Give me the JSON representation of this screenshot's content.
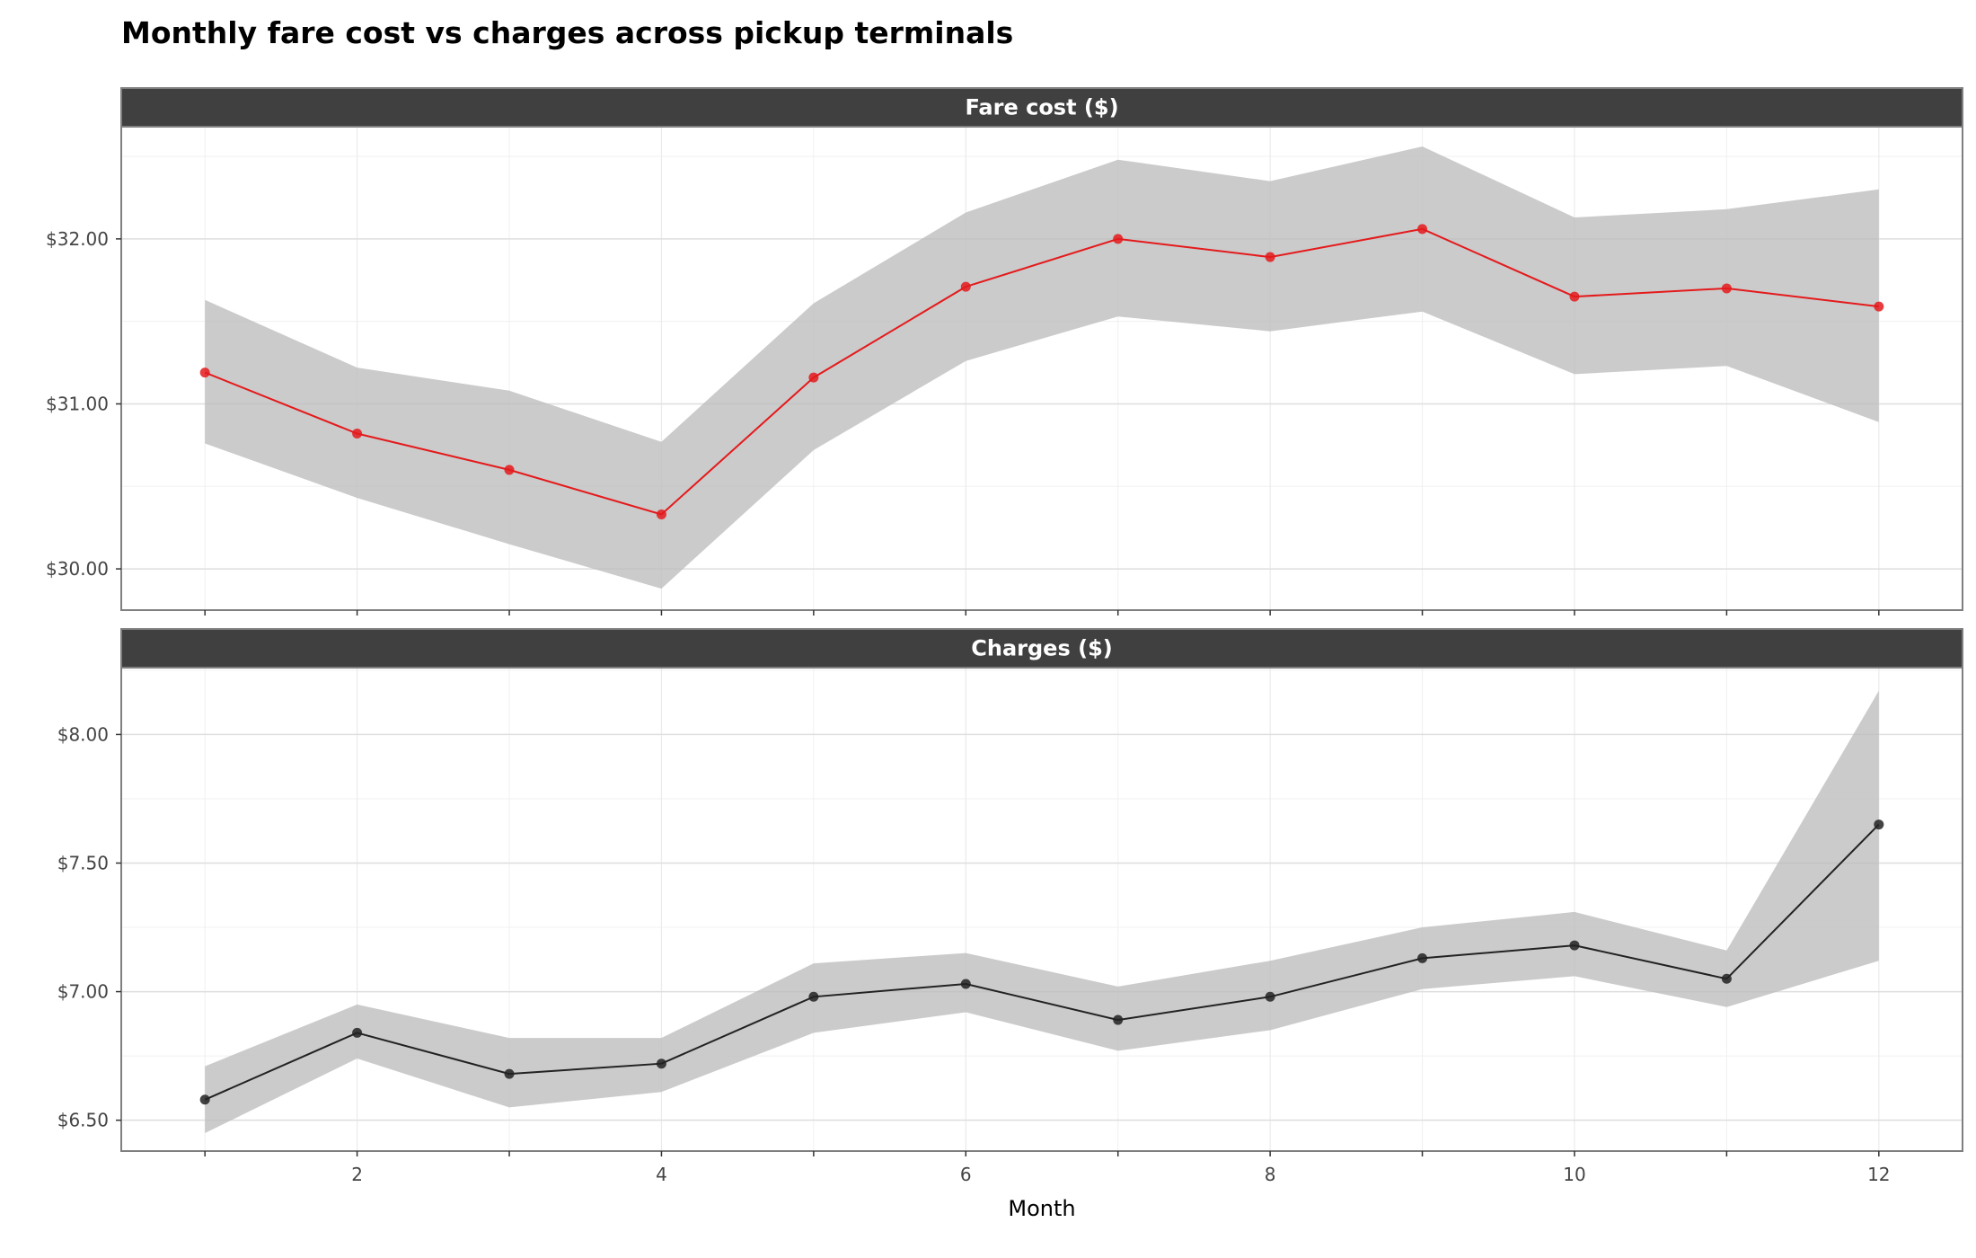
{
  "chart_data": {
    "type": "line",
    "title": "Monthly fare cost vs charges across pickup terminals",
    "xlabel": "Month",
    "x": [
      1,
      2,
      3,
      4,
      5,
      6,
      7,
      8,
      9,
      10,
      11,
      12
    ],
    "xticks": [
      2,
      4,
      6,
      8,
      10,
      12
    ],
    "xlim": [
      0.45,
      12.55
    ],
    "grid": true,
    "facets": [
      {
        "name": "Fare cost ($)",
        "color": "#e41a1c",
        "ylim": [
          29.75,
          32.68
        ],
        "yticks": [
          30.0,
          31.0,
          32.0
        ],
        "ytick_labels": [
          "$30.00",
          "$31.00",
          "$32.00"
        ],
        "values": [
          31.19,
          30.82,
          30.6,
          30.33,
          31.16,
          31.71,
          32.0,
          31.89,
          32.06,
          31.65,
          31.7,
          31.59
        ],
        "lower": [
          30.76,
          30.43,
          30.15,
          29.88,
          30.72,
          31.26,
          31.53,
          31.44,
          31.56,
          31.18,
          31.23,
          30.89
        ],
        "upper": [
          31.63,
          31.22,
          31.08,
          30.77,
          31.61,
          32.16,
          32.48,
          32.35,
          32.56,
          32.13,
          32.18,
          32.3
        ]
      },
      {
        "name": "Charges ($)",
        "color": "#222222",
        "ylim": [
          6.38,
          8.26
        ],
        "yticks": [
          6.5,
          7.0,
          7.5,
          8.0
        ],
        "ytick_labels": [
          "$6.50",
          "$7.00",
          "$7.50",
          "$8.00"
        ],
        "values": [
          6.58,
          6.84,
          6.68,
          6.72,
          6.98,
          7.03,
          6.89,
          6.98,
          7.13,
          7.18,
          7.05,
          7.65
        ],
        "lower": [
          6.45,
          6.74,
          6.55,
          6.61,
          6.84,
          6.92,
          6.77,
          6.85,
          7.01,
          7.06,
          6.94,
          7.12
        ],
        "upper": [
          6.71,
          6.95,
          6.82,
          6.82,
          7.11,
          7.15,
          7.02,
          7.12,
          7.25,
          7.31,
          7.16,
          8.17
        ]
      }
    ]
  }
}
